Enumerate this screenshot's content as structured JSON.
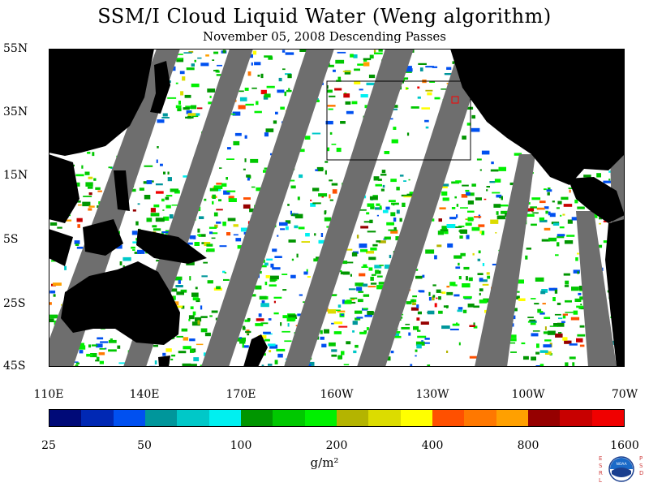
{
  "title": "SSM/I Cloud Liquid Water (Weng algorithm)",
  "subtitle": "November 05, 2008  Descending Passes",
  "lat_labels": [
    "55N",
    "35N",
    "15N",
    "5S",
    "25S",
    "45S"
  ],
  "lon_labels": [
    "110E",
    "140E",
    "170E",
    "160W",
    "130W",
    "100W",
    "70W"
  ],
  "colorbar": {
    "labels": [
      "25",
      "50",
      "100",
      "200",
      "400",
      "800",
      "1600"
    ],
    "colors": [
      "#000a78",
      "#0028b4",
      "#0050f0",
      "#00969b",
      "#00c8c8",
      "#00f0f0",
      "#009600",
      "#00c800",
      "#00f000",
      "#b4b400",
      "#dcdc00",
      "#ffff00",
      "#ff5000",
      "#ff7800",
      "#ffa000",
      "#960000",
      "#c80000",
      "#f00000"
    ],
    "units": "g/m²"
  },
  "colors": {
    "land": "#000000",
    "nodata": "#6e6e6e",
    "clear": "#ffffff"
  },
  "logo": {
    "left_text": "ESRL",
    "right_text": "PSD",
    "center_text": "NOAA"
  }
}
